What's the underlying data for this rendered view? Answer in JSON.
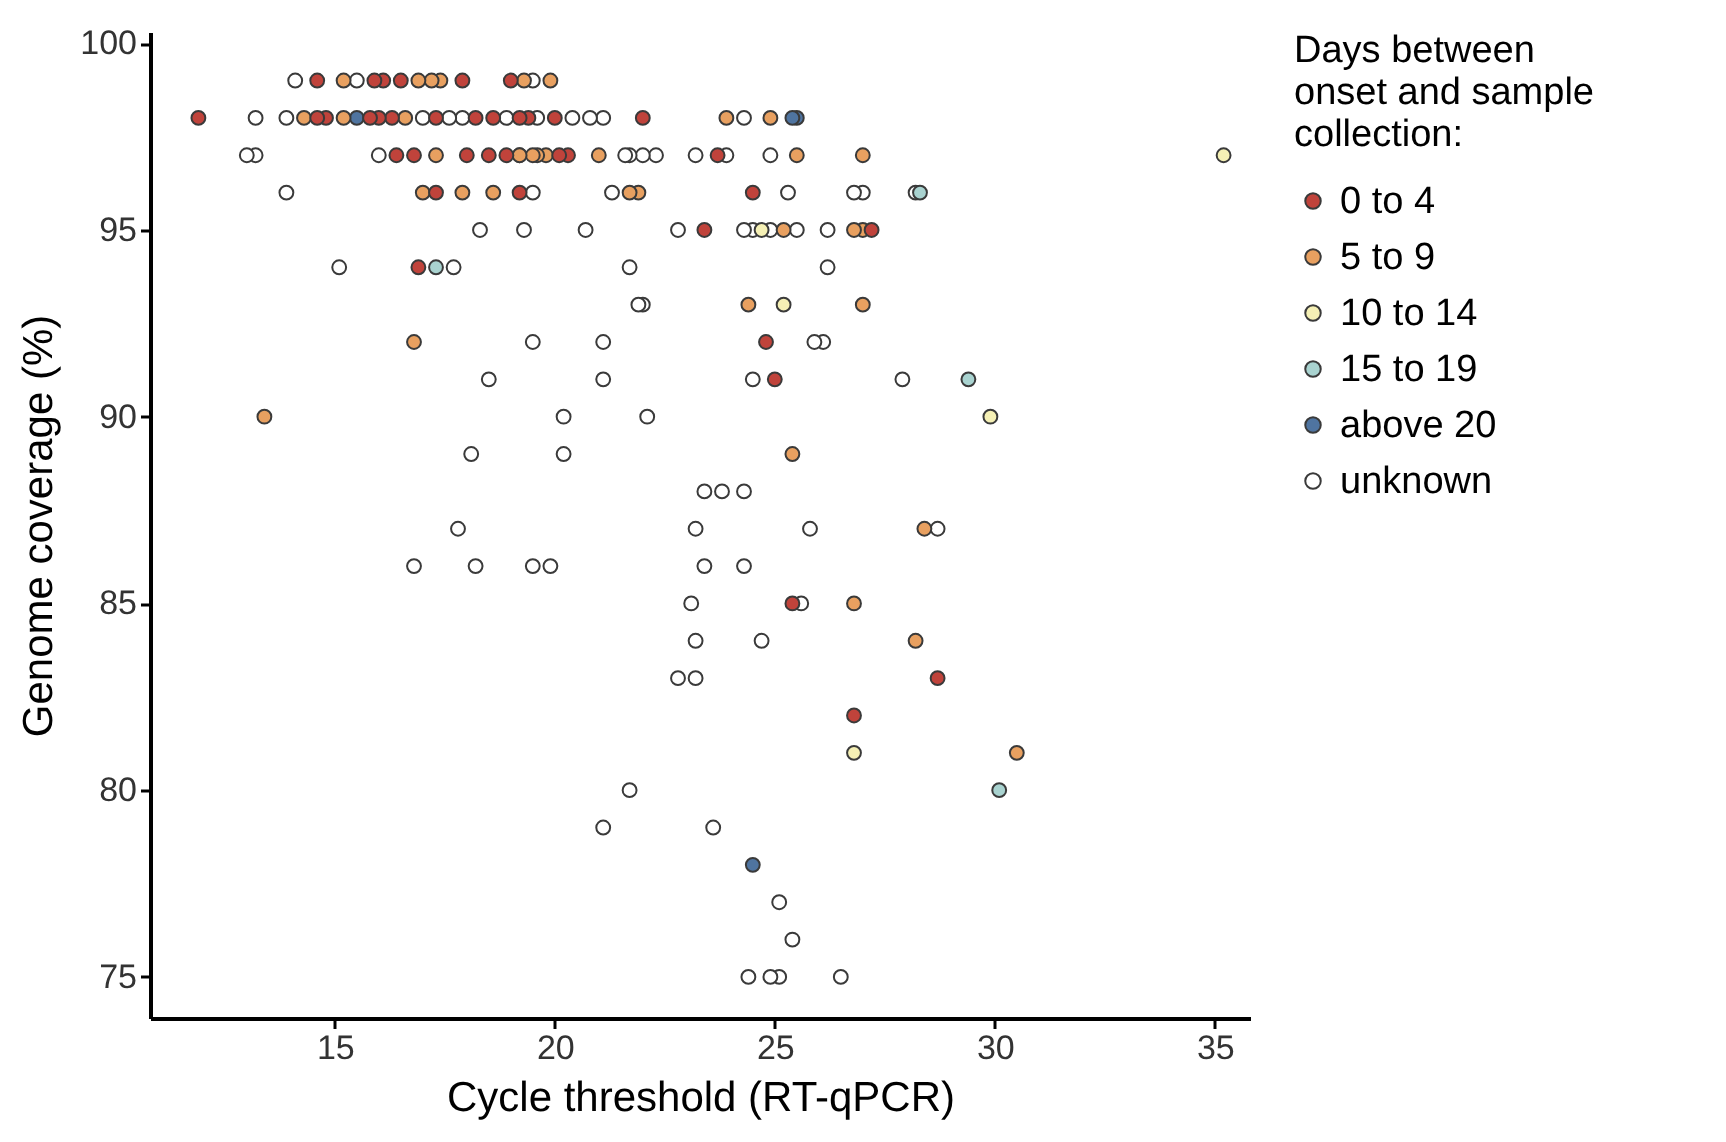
{
  "chart_data": {
    "type": "scatter",
    "xlabel": "Cycle threshold (RT-qPCR)",
    "ylabel": "Genome coverage (%)",
    "legend_title": "Days between onset and sample collection:",
    "legend": "right",
    "marker": "circle",
    "grid": false,
    "xlim": [
      10.8,
      35.8
    ],
    "xticks": [
      15,
      20,
      25,
      30,
      35
    ],
    "ylim": [
      73.9,
      100.3
    ],
    "yticks": [
      75,
      80,
      85,
      90,
      95,
      100
    ],
    "series": [
      {
        "name": "0 to 4",
        "color": "#c0433b",
        "x": [
          14.6,
          15.9,
          16.1,
          16.5,
          17.9,
          19.0,
          11.9,
          14.6,
          14.8,
          15.8,
          16.0,
          16.3,
          17.3,
          18.2,
          18.6,
          19.2,
          19.4,
          20.0,
          22.0,
          16.4,
          16.8,
          18.0,
          18.5,
          18.9,
          20.1,
          20.3,
          23.7,
          17.3,
          19.2,
          24.5,
          23.4,
          27.2,
          16.9,
          24.8,
          25.0,
          25.4,
          28.7,
          26.8
        ],
        "values": [
          99,
          99,
          99,
          99,
          99,
          99,
          98,
          98,
          98,
          98,
          98,
          98,
          98,
          98,
          98,
          98,
          98,
          98,
          98,
          97,
          97,
          97,
          97,
          97,
          97,
          97,
          97,
          96,
          96,
          96,
          95,
          95,
          94,
          92,
          91,
          85,
          83,
          82
        ]
      },
      {
        "name": "5 to 9",
        "color": "#e8a060",
        "x": [
          15.2,
          16.9,
          17.2,
          17.4,
          19.3,
          19.9,
          14.3,
          15.2,
          16.6,
          23.9,
          24.9,
          17.3,
          19.2,
          19.5,
          19.6,
          19.8,
          21.0,
          25.5,
          27.0,
          17.0,
          17.9,
          18.6,
          21.7,
          21.9,
          25.2,
          26.8,
          27.0,
          16.8,
          24.4,
          27.0,
          13.4,
          25.4,
          28.4,
          26.8,
          28.2,
          30.5
        ],
        "values": [
          99,
          99,
          99,
          99,
          99,
          99,
          98,
          98,
          98,
          98,
          98,
          97,
          97,
          97,
          97,
          97,
          97,
          97,
          97,
          96,
          96,
          96,
          96,
          96,
          95,
          95,
          95,
          92,
          93,
          93,
          90,
          89,
          87,
          85,
          84,
          81
        ]
      },
      {
        "name": "10 to 14",
        "color": "#f5f0b5",
        "x": [
          35.2,
          24.7,
          25.2,
          29.9,
          26.8
        ],
        "values": [
          97,
          95,
          93,
          90,
          81
        ]
      },
      {
        "name": "15 to 19",
        "color": "#a9d3d0",
        "x": [
          28.3,
          17.3,
          29.4,
          30.1
        ],
        "values": [
          96,
          94,
          91,
          80
        ]
      },
      {
        "name": "above 20",
        "color": "#4f74a0",
        "x": [
          15.5,
          25.4,
          25.5,
          24.5
        ],
        "values": [
          98,
          98,
          98,
          78
        ]
      },
      {
        "name": "unknown",
        "color": "#ffffff",
        "x": [
          14.1,
          15.5,
          19.5,
          13.2,
          13.9,
          17.0,
          17.6,
          17.9,
          18.9,
          19.6,
          20.4,
          20.8,
          21.1,
          24.3,
          13.0,
          13.2,
          16.0,
          19.2,
          21.6,
          21.7,
          22.0,
          22.3,
          23.2,
          23.9,
          24.9,
          13.9,
          19.5,
          21.3,
          25.3,
          26.8,
          27.0,
          28.2,
          18.3,
          19.3,
          20.7,
          22.8,
          24.3,
          24.5,
          24.9,
          25.5,
          26.2,
          15.1,
          17.7,
          21.7,
          26.2,
          21.9,
          22.0,
          19.5,
          21.1,
          25.9,
          26.1,
          18.5,
          21.1,
          24.5,
          27.9,
          20.2,
          22.1,
          18.1,
          20.2,
          23.4,
          23.8,
          24.3,
          17.8,
          23.2,
          25.8,
          28.7,
          16.8,
          18.2,
          19.5,
          19.9,
          23.4,
          24.3,
          23.1,
          25.6,
          23.2,
          24.7,
          22.8,
          23.2,
          21.7,
          21.1,
          23.6,
          25.1,
          25.4,
          24.4,
          24.9,
          25.1,
          26.5
        ],
        "values": [
          99,
          99,
          99,
          98,
          98,
          98,
          98,
          98,
          98,
          98,
          98,
          98,
          98,
          98,
          97,
          97,
          97,
          97,
          97,
          97,
          97,
          97,
          97,
          97,
          97,
          96,
          96,
          96,
          96,
          96,
          96,
          96,
          95,
          95,
          95,
          95,
          95,
          95,
          95,
          95,
          95,
          94,
          94,
          94,
          94,
          93,
          93,
          92,
          92,
          92,
          92,
          91,
          91,
          91,
          91,
          90,
          90,
          89,
          89,
          88,
          88,
          88,
          87,
          87,
          87,
          87,
          86,
          86,
          86,
          86,
          86,
          86,
          85,
          85,
          84,
          84,
          83,
          83,
          80,
          79,
          79,
          77,
          76,
          75,
          75,
          75,
          75
        ]
      }
    ]
  }
}
